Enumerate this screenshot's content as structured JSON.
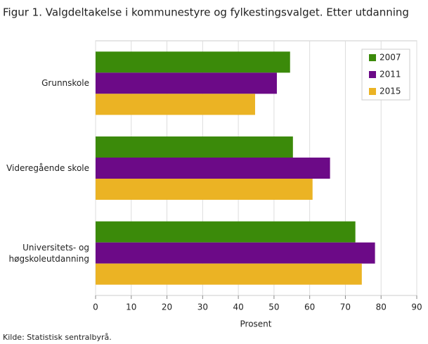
{
  "chart_data": {
    "type": "hbar",
    "title": "Figur 1. Valgdeltakelse i kommunestyre og fylkestingsvalget. Etter utdanning",
    "categories": [
      "Grunnskole",
      "Videregående skole",
      "Universitets- og høgskoleutdanning"
    ],
    "series": [
      {
        "name": "2007",
        "color": "#3b8a0a",
        "values": [
          54.5,
          55.3,
          72.8
        ]
      },
      {
        "name": "2011",
        "color": "#6c0a87",
        "values": [
          50.8,
          65.7,
          78.3
        ]
      },
      {
        "name": "2015",
        "color": "#ebb324",
        "values": [
          44.7,
          60.8,
          74.6
        ]
      }
    ],
    "xlabel": "Prosent",
    "xlim": [
      0,
      90
    ],
    "xticks": [
      0,
      10,
      20,
      30,
      40,
      50,
      60,
      70,
      80,
      90
    ],
    "grid": true,
    "legend": "top-right",
    "source": "Kilde: Statistisk sentralbyrå."
  }
}
